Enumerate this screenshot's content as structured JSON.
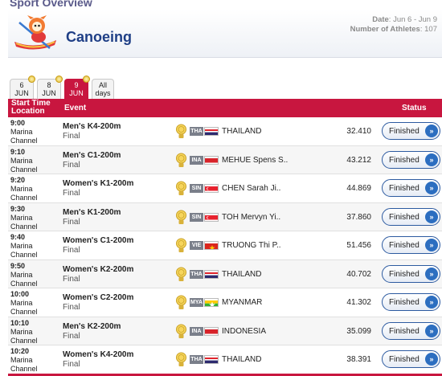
{
  "page": {
    "title": "Sport Overview",
    "sport": "Canoeing",
    "date_label": "Date",
    "date_value": ": Jun 6 - Jun 9",
    "athletes_label": "Number of Athletes",
    "athletes_value": ": 107"
  },
  "tabs": [
    {
      "line1": "6",
      "line2": "JUN",
      "active": false
    },
    {
      "line1": "8",
      "line2": "JUN",
      "active": false
    },
    {
      "line1": "9",
      "line2": "JUN",
      "active": true
    },
    {
      "line1": "All",
      "line2": "days",
      "active": false
    }
  ],
  "table": {
    "headers": {
      "time": "Start Time",
      "location": "Location",
      "event": "Event",
      "status": "Status"
    },
    "rows": [
      {
        "time": "9:00",
        "loc1": "Marina",
        "loc2": "Channel",
        "event": "Men's K4-200m",
        "phase": "Final",
        "noc": "THA",
        "flag": "tha",
        "competitor": "THAILAND",
        "result": "32.410",
        "status": "Finished"
      },
      {
        "time": "9:10",
        "loc1": "Marina",
        "loc2": "Channel",
        "event": "Men's C1-200m",
        "phase": "Final",
        "noc": "INA",
        "flag": "ina",
        "competitor": "MEHUE Spens S..",
        "result": "43.212",
        "status": "Finished"
      },
      {
        "time": "9:20",
        "loc1": "Marina",
        "loc2": "Channel",
        "event": "Women's K1-200m",
        "phase": "Final",
        "noc": "SIN",
        "flag": "sin",
        "competitor": "CHEN Sarah Ji..",
        "result": "44.869",
        "status": "Finished"
      },
      {
        "time": "9:30",
        "loc1": "Marina",
        "loc2": "Channel",
        "event": "Men's K1-200m",
        "phase": "Final",
        "noc": "SIN",
        "flag": "sin",
        "competitor": "TOH Mervyn Yi..",
        "result": "37.860",
        "status": "Finished"
      },
      {
        "time": "9:40",
        "loc1": "Marina",
        "loc2": "Channel",
        "event": "Women's C1-200m",
        "phase": "Final",
        "noc": "VIE",
        "flag": "vie",
        "competitor": "TRUONG Thi P..",
        "result": "51.456",
        "status": "Finished"
      },
      {
        "time": "9:50",
        "loc1": "Marina",
        "loc2": "Channel",
        "event": "Women's K2-200m",
        "phase": "Final",
        "noc": "THA",
        "flag": "tha",
        "competitor": "THAILAND",
        "result": "40.702",
        "status": "Finished"
      },
      {
        "time": "10:00",
        "loc1": "Marina",
        "loc2": "Channel",
        "event": "Women's C2-200m",
        "phase": "Final",
        "noc": "MYA",
        "flag": "mya",
        "competitor": "MYANMAR",
        "result": "41.302",
        "status": "Finished"
      },
      {
        "time": "10:10",
        "loc1": "Marina",
        "loc2": "Channel",
        "event": "Men's K2-200m",
        "phase": "Final",
        "noc": "INA",
        "flag": "ina",
        "competitor": "INDONESIA",
        "result": "35.099",
        "status": "Finished"
      },
      {
        "time": "10:20",
        "loc1": "Marina",
        "loc2": "Channel",
        "event": "Women's K4-200m",
        "phase": "Final",
        "noc": "THA",
        "flag": "tha",
        "competitor": "THAILAND",
        "result": "38.391",
        "status": "Finished"
      }
    ]
  },
  "icons": {
    "medal": "gold-medal-icon",
    "arrow": "double-chevron-right-icon",
    "mascot": "canoeing-mascot-icon"
  },
  "colors": {
    "accent": "#c8163f",
    "title": "#1f3f86",
    "button_border": "#2c5aa0"
  }
}
